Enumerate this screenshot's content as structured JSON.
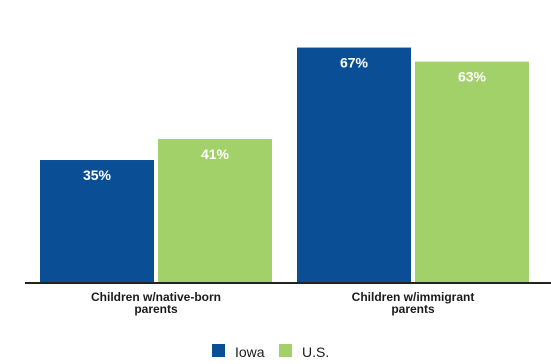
{
  "chart_data": {
    "type": "bar",
    "categories": [
      [
        "Children w/native-born",
        "parents"
      ],
      [
        "Children w/immigrant",
        "parents"
      ]
    ],
    "series": [
      {
        "name": "Iowa",
        "values": [
          35,
          67
        ],
        "labels": [
          "35%",
          "67%"
        ],
        "color": "#0a4f96"
      },
      {
        "name": "U.S.",
        "values": [
          41,
          63
        ],
        "labels": [
          "41%",
          "63%"
        ],
        "color": "#a3d169"
      }
    ],
    "title": "",
    "xlabel": "",
    "ylabel": "",
    "ylim": [
      0,
      72
    ],
    "grid": false,
    "legend_position": "bottom"
  }
}
